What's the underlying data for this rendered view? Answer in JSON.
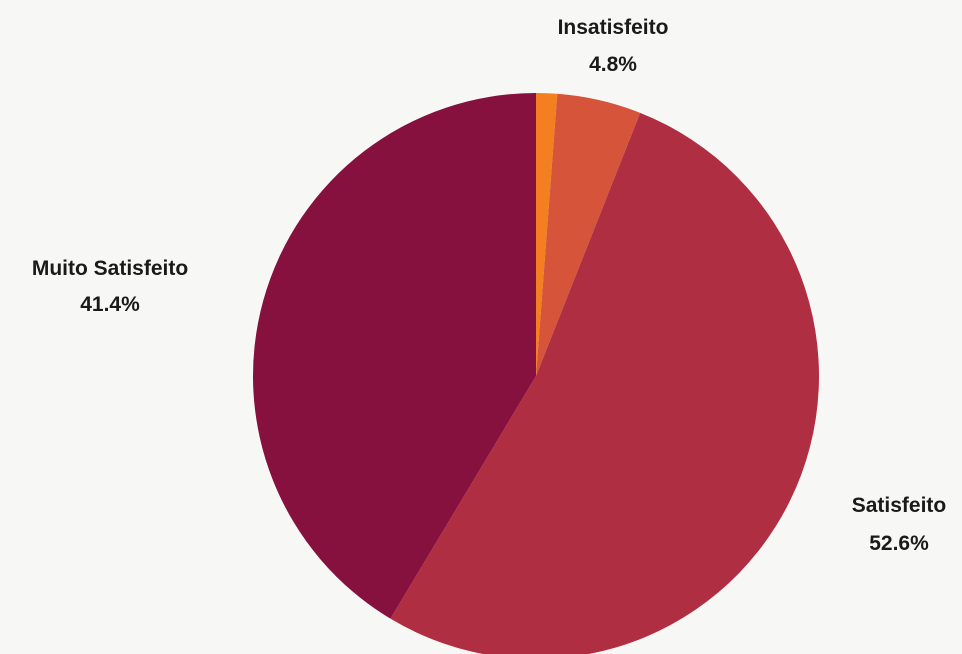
{
  "chart_data": {
    "type": "pie",
    "slices": [
      {
        "label": "",
        "value": 1.2,
        "color": "#f47f20",
        "value_label": ""
      },
      {
        "label": "Insatisfeito",
        "value": 4.8,
        "color": "#d6543a",
        "value_label": "4.8%"
      },
      {
        "label": "Satisfeito",
        "value": 52.6,
        "color": "#b02e42",
        "value_label": "52.6%"
      },
      {
        "label": "Muito Satisfeito",
        "value": 41.4,
        "color": "#86103e",
        "value_label": "41.4%"
      }
    ],
    "start_angle": "12 o'clock",
    "direction": "clockwise",
    "legend": "none"
  }
}
